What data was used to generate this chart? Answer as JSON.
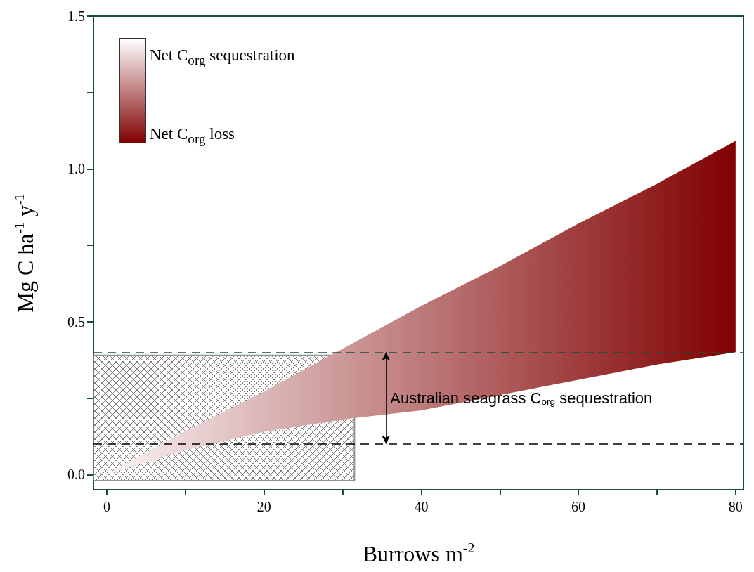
{
  "chart_data": {
    "type": "line",
    "xlabel": "Burrows m$^{-2}$",
    "ylabel": "Mg C ha$^{-1}$ y$^{-1}$",
    "x": [
      0,
      10,
      20,
      30,
      40,
      50,
      60,
      70,
      80
    ],
    "series": [
      {
        "color": "#800000",
        "values": [
          0,
          0.14,
          0.27,
          0.41,
          0.55,
          0.68,
          0.82,
          0.95,
          1.09
        ],
        "lower": [
          0,
          0.08,
          0.14,
          0.18,
          0.21,
          0.26,
          0.31,
          0.36,
          0.4
        ],
        "upper": [
          0,
          0.14,
          0.27,
          0.41,
          0.55,
          0.68,
          0.82,
          0.95,
          1.09
        ]
      }
    ],
    "xlim": [
      -1.7,
      81
    ],
    "ylim": [
      -0.05,
      1.5
    ],
    "xticks": [
      0,
      {
        "value": 10,
        "label": null
      },
      20,
      {
        "value": 30,
        "label": null
      },
      40,
      {
        "value": 50,
        "label": null
      },
      60,
      {
        "value": 70,
        "label": null
      },
      80
    ],
    "yticks": [
      {
        "value": 0,
        "label": "0.0"
      },
      {
        "value": 0.25,
        "label": null
      },
      {
        "value": 0.5,
        "label": "0.5"
      },
      {
        "value": 0.75,
        "label": null
      },
      {
        "value": 1,
        "label": "1.0"
      },
      {
        "value": 1.25,
        "label": null
      },
      {
        "value": 1.5,
        "label": "1.5"
      }
    ],
    "ref_lines": [
      {
        "axis": "y",
        "value": 0.4,
        "color": "#1a4d3a",
        "line_style": "dashed"
      },
      {
        "axis": "y",
        "value": 0.1,
        "color": "#000000",
        "line_style": "dashed"
      }
    ],
    "bands": [
      {
        "axis": "x",
        "from": -2,
        "to": 31.5,
        "color": "#808080"
      }
    ],
    "annotations": [
      "Net C$_{org}$ sequestration",
      "Net C$_{org}$ loss",
      "Australian seagrass C$_{org}$ sequestration"
    ],
    "grid": false
  }
}
